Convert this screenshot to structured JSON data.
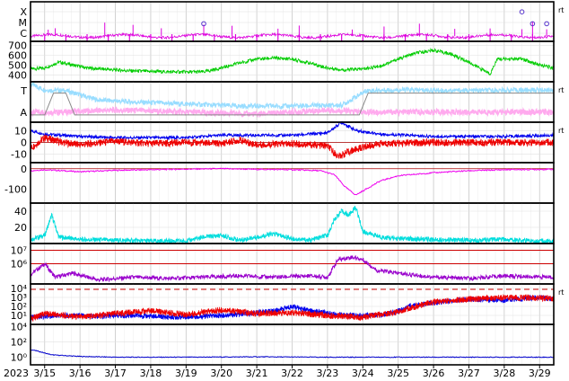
{
  "figure": {
    "year_label": "2023",
    "right_mark": "rt",
    "colors": {
      "xray": "#dd00dd",
      "wind": "#00cc00",
      "electron_high": "#99ddff",
      "electron_low": "#ffaaee",
      "bz_pos": "#0000ee",
      "bz_neg": "#ee0000",
      "dst": "#ee00ee",
      "ae": "#00dddd",
      "proton": "#9900cc",
      "proton_threshold": "#cc0000",
      "particle_a": "#0000ee",
      "particle_b": "#ee0000",
      "bottom": "#0000cc"
    }
  },
  "chart_data": [
    {
      "panel": "xray-flares",
      "type": "line",
      "ytick_labels": [
        "X",
        "M",
        "C"
      ],
      "markers_x": [
        19.5,
        28.5,
        28.8,
        29.2
      ],
      "markers_y": [
        1.3,
        2.4,
        1.3,
        1.3
      ],
      "spike_days": [
        15.1,
        15.3,
        16.7,
        17.5,
        18.3,
        19.5,
        20.3,
        21.6,
        22.2,
        23.7,
        24.6,
        25.6,
        26.6,
        27.6,
        28.5,
        28.8,
        29.2
      ],
      "baseline_level": 0.15
    },
    {
      "panel": "solar-wind-speed",
      "type": "line",
      "ytick_labels": [
        "400",
        "500",
        "600",
        "700"
      ],
      "ylim": [
        330,
        740
      ],
      "points": [
        [
          14.6,
          460
        ],
        [
          15.0,
          470
        ],
        [
          15.4,
          530
        ],
        [
          15.8,
          500
        ],
        [
          16.2,
          470
        ],
        [
          16.8,
          455
        ],
        [
          17.5,
          440
        ],
        [
          18.5,
          430
        ],
        [
          19.5,
          430
        ],
        [
          20.0,
          470
        ],
        [
          20.5,
          520
        ],
        [
          21.0,
          560
        ],
        [
          21.5,
          570
        ],
        [
          22.0,
          560
        ],
        [
          22.5,
          520
        ],
        [
          23.0,
          470
        ],
        [
          23.5,
          450
        ],
        [
          24.0,
          460
        ],
        [
          24.5,
          490
        ],
        [
          25.0,
          560
        ],
        [
          25.5,
          620
        ],
        [
          26.0,
          650
        ],
        [
          26.5,
          610
        ],
        [
          27.0,
          530
        ],
        [
          27.4,
          450
        ],
        [
          27.6,
          410
        ],
        [
          27.8,
          560
        ],
        [
          28.5,
          560
        ],
        [
          29.0,
          500
        ],
        [
          29.4,
          470
        ]
      ]
    },
    {
      "panel": "electron-flux",
      "type": "line",
      "ytick_labels": [
        "T",
        "A"
      ],
      "high_points": [
        [
          14.6,
          0.95
        ],
        [
          15.0,
          0.8
        ],
        [
          15.6,
          0.78
        ],
        [
          16.5,
          0.55
        ],
        [
          17.5,
          0.5
        ],
        [
          19.0,
          0.45
        ],
        [
          20.5,
          0.4
        ],
        [
          22.0,
          0.4
        ],
        [
          23.4,
          0.42
        ],
        [
          24.1,
          0.78
        ],
        [
          25.0,
          0.8
        ],
        [
          27.0,
          0.78
        ],
        [
          29.4,
          0.8
        ]
      ],
      "low_points": [
        [
          14.6,
          0.25
        ],
        [
          15.5,
          0.25
        ],
        [
          17.0,
          0.3
        ],
        [
          19.0,
          0.25
        ],
        [
          21.0,
          0.2
        ],
        [
          23.0,
          0.3
        ],
        [
          24.0,
          0.25
        ]
      ],
      "step_points": [
        [
          14.6,
          0.18
        ],
        [
          15.0,
          0.18
        ],
        [
          15.25,
          0.72
        ],
        [
          15.6,
          0.72
        ],
        [
          15.85,
          0.18
        ],
        [
          23.9,
          0.18
        ],
        [
          24.15,
          0.72
        ],
        [
          29.4,
          0.72
        ]
      ]
    },
    {
      "panel": "imf",
      "type": "line",
      "ytick_labels": [
        "10",
        "0",
        "-10"
      ],
      "ylim": [
        -17,
        17
      ],
      "bt_points": [
        [
          14.6,
          10
        ],
        [
          15.0,
          7
        ],
        [
          16.0,
          5
        ],
        [
          17.0,
          4
        ],
        [
          18.0,
          4
        ],
        [
          19.0,
          4
        ],
        [
          20.0,
          6
        ],
        [
          21.0,
          6
        ],
        [
          22.0,
          6
        ],
        [
          23.0,
          8
        ],
        [
          23.4,
          17
        ],
        [
          23.8,
          10
        ],
        [
          24.5,
          7
        ],
        [
          26.0,
          5
        ],
        [
          28.0,
          5
        ],
        [
          29.4,
          6
        ]
      ],
      "bz_points": [
        [
          14.6,
          -5
        ],
        [
          15.0,
          4
        ],
        [
          15.5,
          0
        ],
        [
          16.0,
          -2
        ],
        [
          17.0,
          1
        ],
        [
          18.0,
          -1
        ],
        [
          19.0,
          0
        ],
        [
          20.0,
          -1
        ],
        [
          20.5,
          2
        ],
        [
          21.0,
          -2
        ],
        [
          22.0,
          -1
        ],
        [
          23.0,
          -3
        ],
        [
          23.3,
          -12
        ],
        [
          23.6,
          -8
        ],
        [
          24.0,
          -4
        ],
        [
          24.5,
          -1
        ],
        [
          26.0,
          0
        ],
        [
          28.0,
          0
        ],
        [
          29.4,
          0
        ]
      ]
    },
    {
      "panel": "dst",
      "type": "line",
      "ytick_labels": [
        "0",
        "-100"
      ],
      "ylim": [
        -170,
        30
      ],
      "points": [
        [
          14.6,
          -10
        ],
        [
          15.0,
          -5
        ],
        [
          15.5,
          -10
        ],
        [
          16.0,
          -15
        ],
        [
          17.0,
          -8
        ],
        [
          18.0,
          -5
        ],
        [
          19.0,
          -2
        ],
        [
          20.0,
          0
        ],
        [
          21.0,
          -3
        ],
        [
          22.0,
          -5
        ],
        [
          22.8,
          -10
        ],
        [
          23.2,
          -30
        ],
        [
          23.5,
          -90
        ],
        [
          23.8,
          -130
        ],
        [
          24.0,
          -110
        ],
        [
          24.5,
          -60
        ],
        [
          25.0,
          -35
        ],
        [
          26.0,
          -20
        ],
        [
          27.0,
          -10
        ],
        [
          28.0,
          -5
        ],
        [
          29.4,
          -3
        ]
      ]
    },
    {
      "panel": "ae-index",
      "type": "line",
      "ytick_labels": [
        "40",
        "20"
      ],
      "ylim": [
        0,
        50
      ],
      "points": [
        [
          14.6,
          5
        ],
        [
          15.0,
          10
        ],
        [
          15.2,
          35
        ],
        [
          15.4,
          8
        ],
        [
          16.0,
          5
        ],
        [
          17.0,
          4
        ],
        [
          18.0,
          3
        ],
        [
          19.0,
          3
        ],
        [
          19.5,
          8
        ],
        [
          20.0,
          10
        ],
        [
          20.5,
          4
        ],
        [
          21.5,
          12
        ],
        [
          22.0,
          6
        ],
        [
          22.5,
          4
        ],
        [
          23.0,
          10
        ],
        [
          23.2,
          30
        ],
        [
          23.4,
          40
        ],
        [
          23.6,
          35
        ],
        [
          23.8,
          45
        ],
        [
          24.0,
          15
        ],
        [
          24.5,
          8
        ],
        [
          25.0,
          6
        ],
        [
          26.0,
          5
        ],
        [
          27.0,
          4
        ],
        [
          28.0,
          5
        ],
        [
          29.0,
          3
        ],
        [
          29.4,
          3
        ]
      ]
    },
    {
      "panel": "proton-flux",
      "type": "line",
      "ytick_labels": [
        "10⁷",
        "10⁶"
      ],
      "ylim_log10": [
        4.5,
        7.5
      ],
      "thresholds_log10": [
        7.0,
        6.0
      ],
      "points": [
        [
          14.6,
          5.2
        ],
        [
          15.0,
          6.0
        ],
        [
          15.3,
          5.0
        ],
        [
          15.8,
          5.3
        ],
        [
          16.5,
          4.8
        ],
        [
          17.5,
          5.0
        ],
        [
          18.5,
          4.9
        ],
        [
          19.5,
          5.0
        ],
        [
          20.5,
          5.1
        ],
        [
          21.5,
          5.0
        ],
        [
          22.5,
          5.1
        ],
        [
          23.0,
          5.0
        ],
        [
          23.3,
          6.3
        ],
        [
          23.7,
          6.5
        ],
        [
          24.0,
          6.3
        ],
        [
          24.4,
          5.5
        ],
        [
          25.0,
          5.3
        ],
        [
          26.0,
          5.0
        ],
        [
          27.0,
          4.9
        ],
        [
          28.0,
          5.1
        ],
        [
          29.4,
          5.0
        ]
      ]
    },
    {
      "panel": "particle-flux",
      "type": "line",
      "ytick_labels": [
        "10⁴",
        "10³",
        "10²",
        "10¹"
      ],
      "ylim_log10": [
        0,
        4.5
      ],
      "dashed_level_log10": 3.9,
      "series_a_points": [
        [
          14.6,
          0.8
        ],
        [
          15.5,
          1.0
        ],
        [
          16.5,
          0.9
        ],
        [
          17.5,
          1.0
        ],
        [
          18.5,
          0.8
        ],
        [
          19.5,
          0.9
        ],
        [
          20.5,
          1.1
        ],
        [
          21.5,
          1.5
        ],
        [
          22.0,
          2.0
        ],
        [
          22.5,
          1.5
        ],
        [
          23.5,
          1.0
        ],
        [
          24.5,
          1.0
        ],
        [
          25.0,
          1.5
        ],
        [
          25.3,
          2.0
        ],
        [
          26.0,
          2.4
        ],
        [
          27.0,
          2.8
        ],
        [
          28.0,
          2.7
        ],
        [
          29.0,
          3.0
        ],
        [
          29.4,
          2.8
        ]
      ],
      "series_b_points": [
        [
          14.6,
          0.6
        ],
        [
          15.0,
          1.2
        ],
        [
          16.0,
          0.8
        ],
        [
          17.0,
          1.2
        ],
        [
          18.0,
          1.5
        ],
        [
          19.0,
          1.1
        ],
        [
          20.0,
          1.6
        ],
        [
          21.0,
          1.2
        ],
        [
          22.0,
          1.3
        ],
        [
          23.0,
          1.0
        ],
        [
          24.0,
          0.8
        ],
        [
          25.0,
          1.4
        ],
        [
          25.5,
          2.0
        ],
        [
          26.0,
          2.5
        ],
        [
          27.0,
          2.8
        ],
        [
          28.0,
          3.0
        ],
        [
          29.4,
          2.9
        ]
      ]
    },
    {
      "panel": "bottom-flux",
      "type": "line",
      "ytick_labels": [
        "10⁴",
        "10²",
        "10⁰"
      ],
      "ylim_log10": [
        -1,
        4.3
      ],
      "points": [
        [
          14.6,
          1.0
        ],
        [
          14.8,
          0.8
        ],
        [
          15.2,
          0.3
        ],
        [
          16.0,
          0.1
        ],
        [
          17.0,
          0.0
        ],
        [
          19.0,
          0.0
        ],
        [
          21.0,
          0.05
        ],
        [
          23.0,
          0.0
        ],
        [
          25.0,
          0.0
        ],
        [
          27.0,
          0.0
        ],
        [
          29.4,
          0.0
        ]
      ]
    }
  ],
  "x_axis": {
    "labels": [
      "3/15",
      "3/16",
      "3/17",
      "3/18",
      "3/19",
      "3/20",
      "3/21",
      "3/22",
      "3/23",
      "3/24",
      "3/25",
      "3/26",
      "3/27",
      "3/28",
      "3/29"
    ],
    "first_day": 15
  }
}
